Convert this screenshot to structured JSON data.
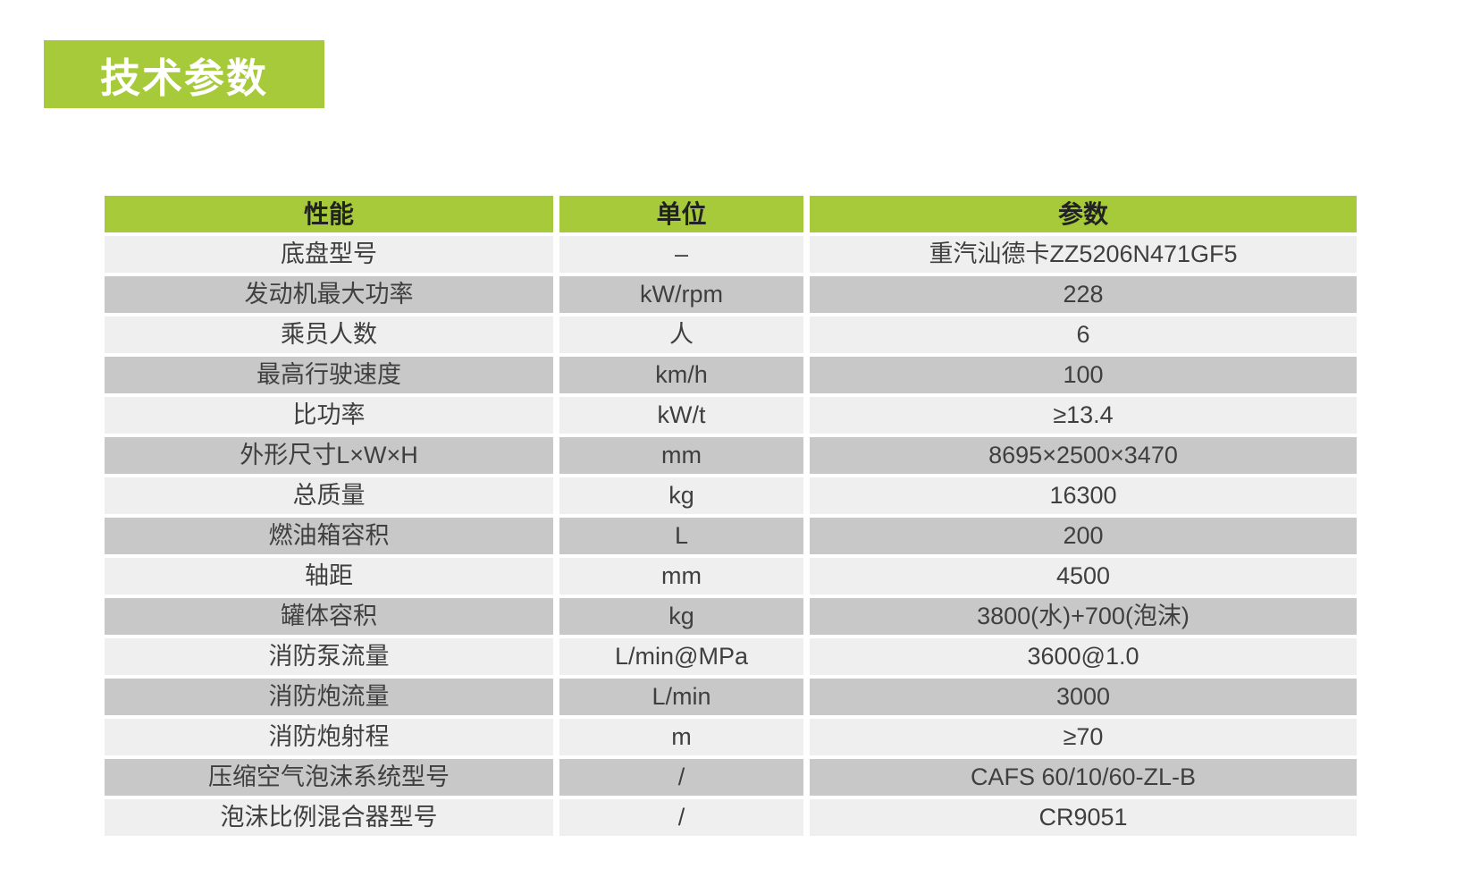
{
  "colors": {
    "accent_green": "#a6ca3a",
    "row_light": "#efefef",
    "row_dark": "#c8c8c8",
    "header_text": "#222222",
    "cell_text": "#3f3f3f",
    "badge_text": "#ffffff",
    "page_bg": "#ffffff"
  },
  "title_badge": {
    "label": "技术参数"
  },
  "table": {
    "columns": [
      "性能",
      "单位",
      "参数"
    ],
    "rows": [
      {
        "name": "底盘型号",
        "unit": "–",
        "value": "重汽汕德卡ZZ5206N471GF5"
      },
      {
        "name": "发动机最大功率",
        "unit": "kW/rpm",
        "value": "228"
      },
      {
        "name": "乘员人数",
        "unit": "人",
        "value": "6"
      },
      {
        "name": "最高行驶速度",
        "unit": "km/h",
        "value": "100"
      },
      {
        "name": "比功率",
        "unit": "kW/t",
        "value": "≥13.4"
      },
      {
        "name": "外形尺寸L×W×H",
        "unit": "mm",
        "value": "8695×2500×3470"
      },
      {
        "name": "总质量",
        "unit": "kg",
        "value": "16300"
      },
      {
        "name": "燃油箱容积",
        "unit": "L",
        "value": "200"
      },
      {
        "name": "轴距",
        "unit": "mm",
        "value": "4500"
      },
      {
        "name": "罐体容积",
        "unit": "kg",
        "value": "3800(水)+700(泡沫)"
      },
      {
        "name": "消防泵流量",
        "unit": "L/min@MPa",
        "value": "3600@1.0"
      },
      {
        "name": "消防炮流量",
        "unit": "L/min",
        "value": "3000"
      },
      {
        "name": "消防炮射程",
        "unit": "m",
        "value": "≥70"
      },
      {
        "name": "压缩空气泡沫系统型号",
        "unit": "/",
        "value": "CAFS 60/10/60-ZL-B"
      },
      {
        "name": "泡沫比例混合器型号",
        "unit": "/",
        "value": "CR9051"
      }
    ]
  }
}
